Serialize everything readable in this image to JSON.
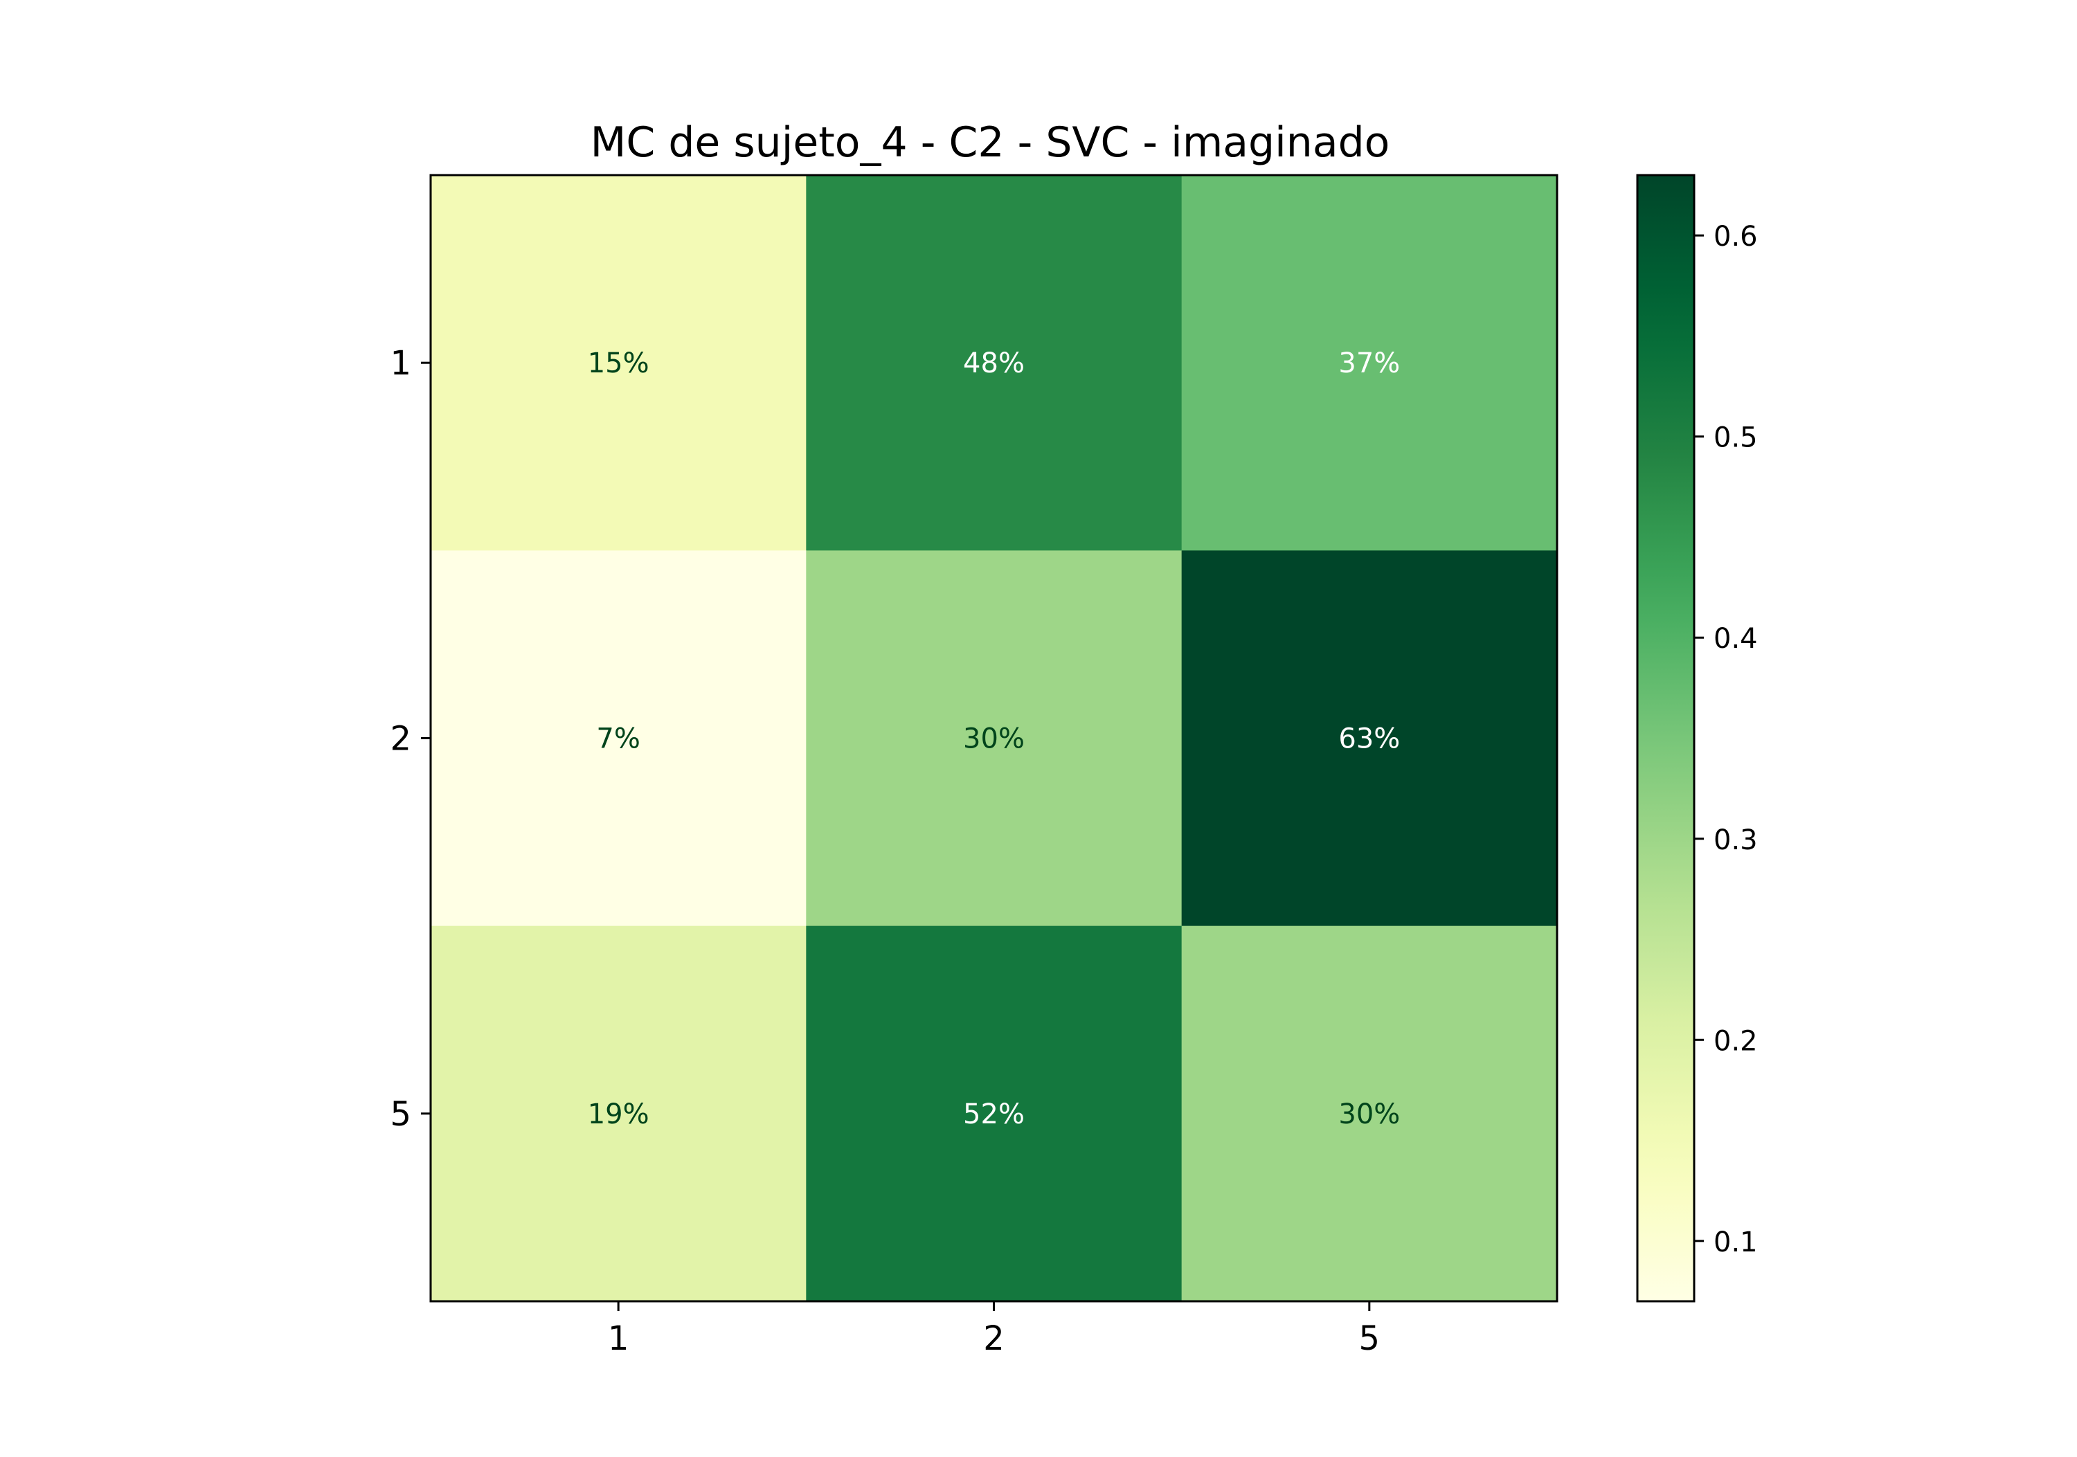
{
  "chart_data": {
    "type": "heatmap",
    "title": "MC de sujeto_4 - C2 - SVC - imaginado",
    "xlabel": "",
    "ylabel": "",
    "x_categories": [
      "1",
      "2",
      "5"
    ],
    "y_categories": [
      "1",
      "2",
      "5"
    ],
    "values": [
      [
        0.15,
        0.48,
        0.37
      ],
      [
        0.07,
        0.3,
        0.63
      ],
      [
        0.19,
        0.52,
        0.3
      ]
    ],
    "cell_labels": [
      [
        "15%",
        "48%",
        "37%"
      ],
      [
        "7%",
        "30%",
        "63%"
      ],
      [
        "19%",
        "52%",
        "30%"
      ]
    ],
    "colormap": "YlGn",
    "colorbar": {
      "range": [
        0.07,
        0.63
      ],
      "ticks": [
        0.1,
        0.2,
        0.3,
        0.4,
        0.5,
        0.6
      ],
      "tick_labels": [
        "0.1",
        "0.2",
        "0.3",
        "0.4",
        "0.5",
        "0.6"
      ]
    },
    "grid": false,
    "legend": "none",
    "colors": {
      "dark_text": "#00441b",
      "light_text": "#ffffff",
      "axis": "#000000"
    }
  }
}
